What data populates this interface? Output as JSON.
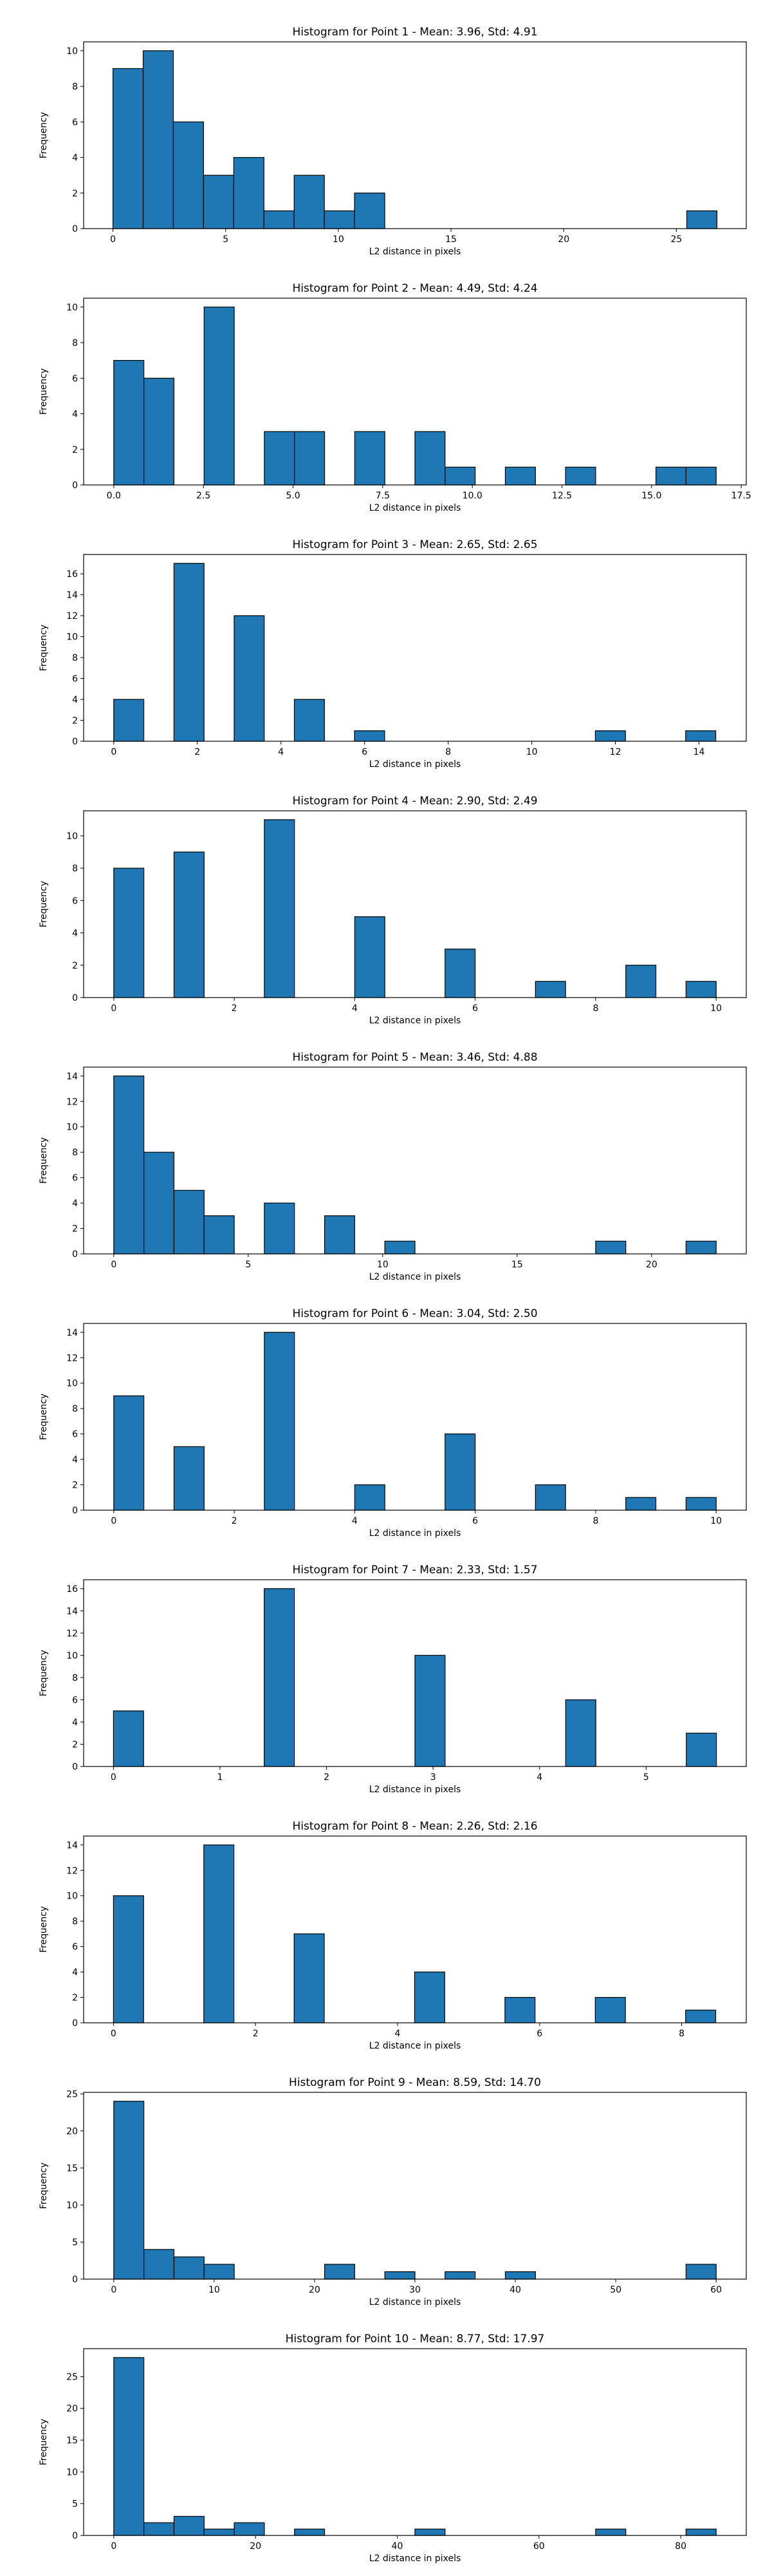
{
  "chart_data": [
    {
      "type": "bar",
      "title": "Histogram for Point 1 - Mean: 3.96, Std: 4.91",
      "xlabel": "L2 distance in pixels",
      "ylabel": "Frequency",
      "xlim": [
        -1.3,
        28.1
      ],
      "ylim": [
        0,
        10.5
      ],
      "xticks": [
        0,
        5,
        10,
        15,
        20,
        25
      ],
      "xtick_labels": [
        "0",
        "5",
        "10",
        "15",
        "20",
        "25"
      ],
      "yticks": [
        0,
        2,
        4,
        6,
        8,
        10
      ],
      "ytick_labels": [
        "0",
        "2",
        "4",
        "6",
        "8",
        "10"
      ],
      "bin_width": 1.34,
      "bins": [
        {
          "x": 0.0,
          "count": 9
        },
        {
          "x": 1.34,
          "count": 10
        },
        {
          "x": 2.68,
          "count": 6
        },
        {
          "x": 4.02,
          "count": 3
        },
        {
          "x": 5.36,
          "count": 4
        },
        {
          "x": 6.7,
          "count": 1
        },
        {
          "x": 8.04,
          "count": 3
        },
        {
          "x": 9.38,
          "count": 1
        },
        {
          "x": 10.72,
          "count": 2
        },
        {
          "x": 25.46,
          "count": 1
        }
      ]
    },
    {
      "type": "bar",
      "title": "Histogram for Point 2 - Mean: 4.49, Std: 4.24",
      "xlabel": "L2 distance in pixels",
      "ylabel": "Frequency",
      "xlim": [
        -0.84,
        17.64
      ],
      "ylim": [
        0,
        10.5
      ],
      "xticks": [
        0,
        2.5,
        5,
        7.5,
        10,
        12.5,
        15,
        17.5
      ],
      "xtick_labels": [
        "0.0",
        "2.5",
        "5.0",
        "7.5",
        "10.0",
        "12.5",
        "15.0",
        "17.5"
      ],
      "yticks": [
        0,
        2,
        4,
        6,
        8,
        10
      ],
      "ytick_labels": [
        "0",
        "2",
        "4",
        "6",
        "8",
        "10"
      ],
      "bin_width": 0.84,
      "bins": [
        {
          "x": 0.0,
          "count": 7
        },
        {
          "x": 0.84,
          "count": 6
        },
        {
          "x": 2.52,
          "count": 10
        },
        {
          "x": 4.2,
          "count": 3
        },
        {
          "x": 5.04,
          "count": 3
        },
        {
          "x": 6.72,
          "count": 3
        },
        {
          "x": 8.4,
          "count": 3
        },
        {
          "x": 9.24,
          "count": 1
        },
        {
          "x": 10.92,
          "count": 1
        },
        {
          "x": 12.6,
          "count": 1
        },
        {
          "x": 15.12,
          "count": 1
        },
        {
          "x": 15.96,
          "count": 1
        }
      ]
    },
    {
      "type": "bar",
      "title": "Histogram for Point 3 - Mean: 2.65, Std: 2.65",
      "xlabel": "L2 distance in pixels",
      "ylabel": "Frequency",
      "xlim": [
        -0.72,
        15.13
      ],
      "ylim": [
        0,
        17.85
      ],
      "xticks": [
        0,
        2,
        4,
        6,
        8,
        10,
        12,
        14
      ],
      "xtick_labels": [
        "0",
        "2",
        "4",
        "6",
        "8",
        "10",
        "12",
        "14"
      ],
      "yticks": [
        0,
        2,
        4,
        6,
        8,
        10,
        12,
        14,
        16
      ],
      "ytick_labels": [
        "0",
        "2",
        "4",
        "6",
        "8",
        "10",
        "12",
        "14",
        "16"
      ],
      "bin_width": 0.72,
      "bins": [
        {
          "x": 0.0,
          "count": 4
        },
        {
          "x": 1.44,
          "count": 17
        },
        {
          "x": 2.88,
          "count": 12
        },
        {
          "x": 4.32,
          "count": 4
        },
        {
          "x": 5.76,
          "count": 1
        },
        {
          "x": 11.52,
          "count": 1
        },
        {
          "x": 13.68,
          "count": 1
        }
      ]
    },
    {
      "type": "bar",
      "title": "Histogram for Point 4 - Mean: 2.90, Std: 2.49",
      "xlabel": "L2 distance in pixels",
      "ylabel": "Frequency",
      "xlim": [
        -0.5,
        10.5
      ],
      "ylim": [
        0,
        11.55
      ],
      "xticks": [
        0,
        2,
        4,
        6,
        8,
        10
      ],
      "xtick_labels": [
        "0",
        "2",
        "4",
        "6",
        "8",
        "10"
      ],
      "yticks": [
        0,
        2,
        4,
        6,
        8,
        10
      ],
      "ytick_labels": [
        "0",
        "2",
        "4",
        "6",
        "8",
        "10"
      ],
      "bin_width": 0.5,
      "bins": [
        {
          "x": 0.0,
          "count": 8
        },
        {
          "x": 1.0,
          "count": 9
        },
        {
          "x": 2.5,
          "count": 11
        },
        {
          "x": 4.0,
          "count": 5
        },
        {
          "x": 5.5,
          "count": 3
        },
        {
          "x": 7.0,
          "count": 1
        },
        {
          "x": 8.5,
          "count": 2
        },
        {
          "x": 9.5,
          "count": 1
        }
      ]
    },
    {
      "type": "bar",
      "title": "Histogram for Point 5 - Mean: 3.46, Std: 4.88",
      "xlabel": "L2 distance in pixels",
      "ylabel": "Frequency",
      "xlim": [
        -1.12,
        23.52
      ],
      "ylim": [
        0,
        14.7
      ],
      "xticks": [
        0,
        5,
        10,
        15,
        20
      ],
      "xtick_labels": [
        "0",
        "5",
        "10",
        "15",
        "20"
      ],
      "yticks": [
        0,
        2,
        4,
        6,
        8,
        10,
        12,
        14
      ],
      "ytick_labels": [
        "0",
        "2",
        "4",
        "6",
        "8",
        "10",
        "12",
        "14"
      ],
      "bin_width": 1.12,
      "bins": [
        {
          "x": 0.0,
          "count": 14
        },
        {
          "x": 1.12,
          "count": 8
        },
        {
          "x": 2.24,
          "count": 5
        },
        {
          "x": 3.36,
          "count": 3
        },
        {
          "x": 5.6,
          "count": 4
        },
        {
          "x": 7.84,
          "count": 3
        },
        {
          "x": 10.08,
          "count": 1
        },
        {
          "x": 17.92,
          "count": 1
        },
        {
          "x": 21.28,
          "count": 1
        }
      ]
    },
    {
      "type": "bar",
      "title": "Histogram for Point 6 - Mean: 3.04, Std: 2.50",
      "xlabel": "L2 distance in pixels",
      "ylabel": "Frequency",
      "xlim": [
        -0.5,
        10.5
      ],
      "ylim": [
        0,
        14.7
      ],
      "xticks": [
        0,
        2,
        4,
        6,
        8,
        10
      ],
      "xtick_labels": [
        "0",
        "2",
        "4",
        "6",
        "8",
        "10"
      ],
      "yticks": [
        0,
        2,
        4,
        6,
        8,
        10,
        12,
        14
      ],
      "ytick_labels": [
        "0",
        "2",
        "4",
        "6",
        "8",
        "10",
        "12",
        "14"
      ],
      "bin_width": 0.5,
      "bins": [
        {
          "x": 0.0,
          "count": 9
        },
        {
          "x": 1.0,
          "count": 5
        },
        {
          "x": 2.5,
          "count": 14
        },
        {
          "x": 4.0,
          "count": 2
        },
        {
          "x": 5.5,
          "count": 6
        },
        {
          "x": 7.0,
          "count": 2
        },
        {
          "x": 8.5,
          "count": 1
        },
        {
          "x": 9.5,
          "count": 1
        }
      ]
    },
    {
      "type": "bar",
      "title": "Histogram for Point 7 - Mean: 2.33, Std: 1.57",
      "xlabel": "L2 distance in pixels",
      "ylabel": "Frequency",
      "xlim": [
        -0.28,
        5.94
      ],
      "ylim": [
        0,
        16.8
      ],
      "xticks": [
        0,
        1,
        2,
        3,
        4,
        5
      ],
      "xtick_labels": [
        "0",
        "1",
        "2",
        "3",
        "4",
        "5"
      ],
      "yticks": [
        0,
        2,
        4,
        6,
        8,
        10,
        12,
        14,
        16
      ],
      "ytick_labels": [
        "0",
        "2",
        "4",
        "6",
        "8",
        "10",
        "12",
        "14",
        "16"
      ],
      "bin_width": 0.283,
      "bins": [
        {
          "x": 0.0,
          "count": 5
        },
        {
          "x": 1.415,
          "count": 16
        },
        {
          "x": 2.83,
          "count": 10
        },
        {
          "x": 4.245,
          "count": 6
        },
        {
          "x": 5.377,
          "count": 3
        }
      ]
    },
    {
      "type": "bar",
      "title": "Histogram for Point 8 - Mean: 2.26, Std: 2.16",
      "xlabel": "L2 distance in pixels",
      "ylabel": "Frequency",
      "xlim": [
        -0.42,
        8.91
      ],
      "ylim": [
        0,
        14.7
      ],
      "xticks": [
        0,
        2,
        4,
        6,
        8
      ],
      "xtick_labels": [
        "0",
        "2",
        "4",
        "6",
        "8"
      ],
      "yticks": [
        0,
        2,
        4,
        6,
        8,
        10,
        12,
        14
      ],
      "ytick_labels": [
        "0",
        "2",
        "4",
        "6",
        "8",
        "10",
        "12",
        "14"
      ],
      "bin_width": 0.424,
      "bins": [
        {
          "x": 0.0,
          "count": 10
        },
        {
          "x": 1.272,
          "count": 14
        },
        {
          "x": 2.544,
          "count": 7
        },
        {
          "x": 4.24,
          "count": 4
        },
        {
          "x": 5.512,
          "count": 2
        },
        {
          "x": 6.784,
          "count": 2
        },
        {
          "x": 8.056,
          "count": 1
        }
      ]
    },
    {
      "type": "bar",
      "title": "Histogram for Point 9 - Mean: 8.59, Std: 14.70",
      "xlabel": "L2 distance in pixels",
      "ylabel": "Frequency",
      "xlim": [
        -3.0,
        63.0
      ],
      "ylim": [
        0,
        25.2
      ],
      "xticks": [
        0,
        10,
        20,
        30,
        40,
        50,
        60
      ],
      "xtick_labels": [
        "0",
        "10",
        "20",
        "30",
        "40",
        "50",
        "60"
      ],
      "yticks": [
        0,
        5,
        10,
        15,
        20,
        25
      ],
      "ytick_labels": [
        "0",
        "5",
        "10",
        "15",
        "20",
        "25"
      ],
      "bin_width": 3.0,
      "bins": [
        {
          "x": 0.0,
          "count": 24
        },
        {
          "x": 3.0,
          "count": 4
        },
        {
          "x": 6.0,
          "count": 3
        },
        {
          "x": 9.0,
          "count": 2
        },
        {
          "x": 21.0,
          "count": 2
        },
        {
          "x": 27.0,
          "count": 1
        },
        {
          "x": 33.0,
          "count": 1
        },
        {
          "x": 39.0,
          "count": 1
        },
        {
          "x": 57.0,
          "count": 2
        }
      ]
    },
    {
      "type": "bar",
      "title": "Histogram for Point 10 - Mean: 8.77, Std: 17.97",
      "xlabel": "L2 distance in pixels",
      "ylabel": "Frequency",
      "xlim": [
        -4.25,
        89.25
      ],
      "ylim": [
        0,
        29.4
      ],
      "xticks": [
        0,
        20,
        40,
        60,
        80
      ],
      "xtick_labels": [
        "0",
        "20",
        "40",
        "60",
        "80"
      ],
      "yticks": [
        0,
        5,
        10,
        15,
        20,
        25
      ],
      "ytick_labels": [
        "0",
        "5",
        "10",
        "15",
        "20",
        "25"
      ],
      "bin_width": 4.25,
      "bins": [
        {
          "x": 0.0,
          "count": 28
        },
        {
          "x": 4.25,
          "count": 2
        },
        {
          "x": 8.5,
          "count": 3
        },
        {
          "x": 12.75,
          "count": 1
        },
        {
          "x": 17.0,
          "count": 2
        },
        {
          "x": 25.5,
          "count": 1
        },
        {
          "x": 42.5,
          "count": 1
        },
        {
          "x": 68.0,
          "count": 1
        },
        {
          "x": 80.75,
          "count": 1
        }
      ]
    }
  ],
  "colors": {
    "bar_fill": "#1f77b4",
    "bar_edge": "#000000",
    "axes": "#000000",
    "background": "#ffffff"
  }
}
